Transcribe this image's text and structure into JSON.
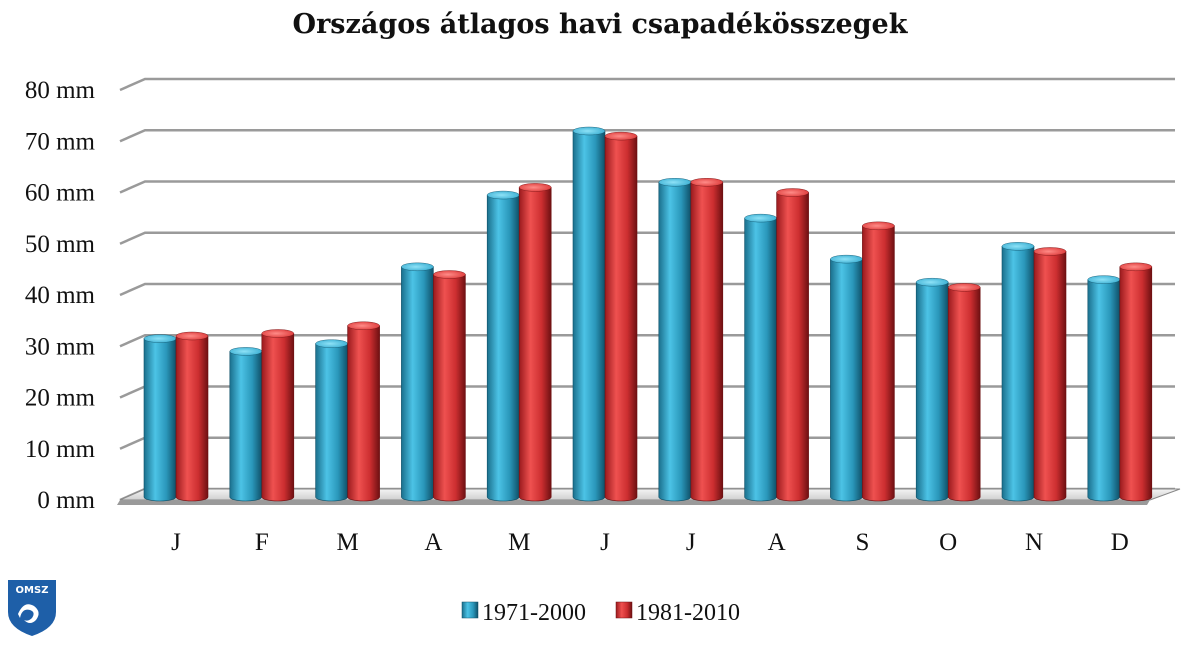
{
  "chart_data": {
    "type": "bar",
    "title": "Országos átlagos havi csapadékösszegek",
    "xlabel": "",
    "ylabel": "",
    "categories": [
      "J",
      "F",
      "M",
      "A",
      "M",
      "J",
      "J",
      "A",
      "S",
      "O",
      "N",
      "D"
    ],
    "series": [
      {
        "name": "1971-2000",
        "color": "#2a8fb0",
        "values": [
          31.5,
          29,
          30.5,
          45.5,
          59.5,
          72,
          62,
          55,
          47,
          42.5,
          49.5,
          43
        ]
      },
      {
        "name": "1981-2010",
        "color": "#c0282b",
        "values": [
          32,
          32.5,
          34,
          44,
          61,
          71,
          62,
          60,
          53.5,
          41.5,
          48.5,
          45.5
        ]
      }
    ],
    "ylim": [
      0,
      80
    ],
    "yticks": [
      "0 mm",
      "10 mm",
      "20 mm",
      "30 mm",
      "40 mm",
      "50 mm",
      "60 mm",
      "70 mm",
      "80 mm"
    ],
    "grid": true,
    "legend_position": "bottom",
    "style": "3d-cylinder"
  },
  "logo": {
    "text": "OMSZ"
  }
}
